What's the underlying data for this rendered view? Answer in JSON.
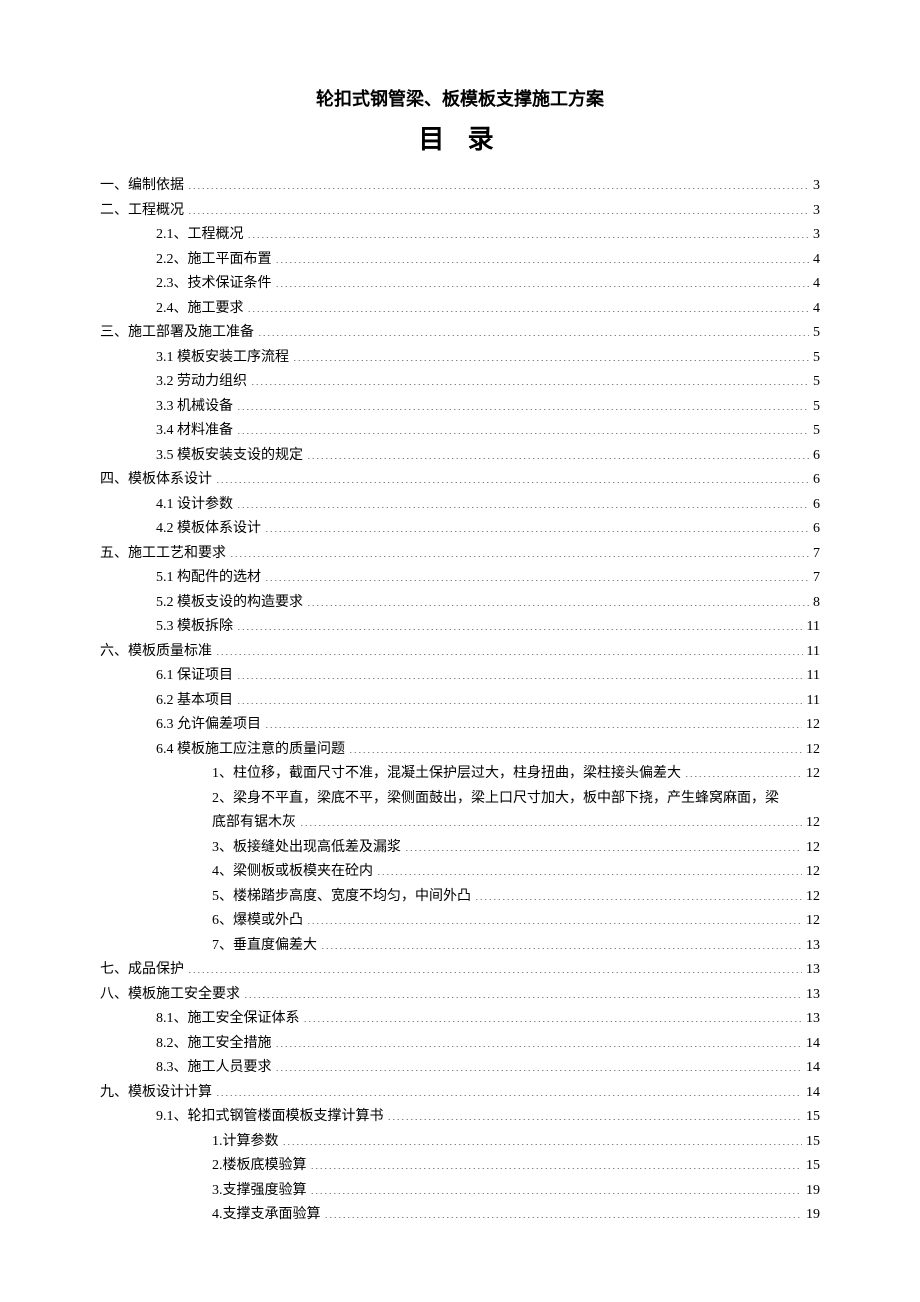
{
  "doc_title": "轮扣式钢管梁、板模板支撑施工方案",
  "toc_heading": "目 录",
  "entries": [
    {
      "indent": 0,
      "label": "一、编制依据",
      "page": "3"
    },
    {
      "indent": 0,
      "label": "二、工程概况",
      "page": "3"
    },
    {
      "indent": 1,
      "label": "2.1、工程概况",
      "page": "3"
    },
    {
      "indent": 1,
      "label": "2.2、施工平面布置",
      "page": "4"
    },
    {
      "indent": 1,
      "label": "2.3、技术保证条件",
      "page": "4"
    },
    {
      "indent": 1,
      "label": "2.4、施工要求",
      "page": "4"
    },
    {
      "indent": 0,
      "label": "三、施工部署及施工准备",
      "page": "5"
    },
    {
      "indent": 1,
      "label": "3.1 模板安装工序流程",
      "page": "5"
    },
    {
      "indent": 1,
      "label": "3.2 劳动力组织",
      "page": "5"
    },
    {
      "indent": 1,
      "label": "3.3 机械设备",
      "page": "5"
    },
    {
      "indent": 1,
      "label": "3.4 材料准备",
      "page": "5"
    },
    {
      "indent": 1,
      "label": "3.5 模板安装支设的规定",
      "page": "6"
    },
    {
      "indent": 0,
      "label": "四、模板体系设计",
      "page": "6"
    },
    {
      "indent": 1,
      "label": "4.1 设计参数",
      "page": "6"
    },
    {
      "indent": 1,
      "label": "4.2 模板体系设计",
      "page": "6"
    },
    {
      "indent": 0,
      "label": "五、施工工艺和要求",
      "page": "7"
    },
    {
      "indent": 1,
      "label": "5.1 构配件的选材",
      "page": "7"
    },
    {
      "indent": 1,
      "label": "5.2 模板支设的构造要求",
      "page": "8"
    },
    {
      "indent": 1,
      "label": "5.3 模板拆除",
      "page": "11"
    },
    {
      "indent": 0,
      "label": "六、模板质量标准",
      "page": "11"
    },
    {
      "indent": 1,
      "label": "6.1 保证项目",
      "page": "11"
    },
    {
      "indent": 1,
      "label": "6.2 基本项目",
      "page": "11"
    },
    {
      "indent": 1,
      "label": "6.3 允许偏差项目",
      "page": "12"
    },
    {
      "indent": 1,
      "label": "6.4 模板施工应注意的质量问题",
      "page": "12"
    },
    {
      "indent": 2,
      "label": "1、柱位移，截面尺寸不准，混凝土保护层过大，柱身扭曲，梁柱接头偏差大",
      "page": "12"
    },
    {
      "indent": 2,
      "wrap": true,
      "label1": "2、梁身不平直，梁底不平，梁侧面鼓出，梁上口尺寸加大，板中部下挠，产生蜂窝麻面，梁",
      "label2": "底部有锯木灰",
      "page": "12"
    },
    {
      "indent": 2,
      "label": "3、板接缝处出现高低差及漏浆",
      "page": "12"
    },
    {
      "indent": 2,
      "label": "4、梁侧板或板模夹在砼内",
      "page": "12"
    },
    {
      "indent": 2,
      "label": "5、楼梯踏步高度、宽度不均匀，中间外凸",
      "page": "12"
    },
    {
      "indent": 2,
      "label": "6、爆模或外凸",
      "page": "12"
    },
    {
      "indent": 2,
      "label": "7、垂直度偏差大",
      "page": "13"
    },
    {
      "indent": 0,
      "label": "七、成品保护",
      "page": "13"
    },
    {
      "indent": 0,
      "label": "八、模板施工安全要求",
      "page": "13"
    },
    {
      "indent": 1,
      "label": "8.1、施工安全保证体系",
      "page": "13"
    },
    {
      "indent": 1,
      "label": "8.2、施工安全措施",
      "page": "14"
    },
    {
      "indent": 1,
      "label": "8.3、施工人员要求",
      "page": "14"
    },
    {
      "indent": 0,
      "label": "九、模板设计计算",
      "page": "14"
    },
    {
      "indent": 1,
      "label": "9.1、轮扣式钢管楼面模板支撑计算书",
      "page": "15"
    },
    {
      "indent": 2,
      "label": "1.计算参数",
      "page": "15"
    },
    {
      "indent": 2,
      "label": "2.楼板底模验算",
      "page": "15"
    },
    {
      "indent": 2,
      "label": "3.支撑强度验算",
      "page": "19"
    },
    {
      "indent": 2,
      "label": "4.支撑支承面验算",
      "page": "19"
    }
  ]
}
